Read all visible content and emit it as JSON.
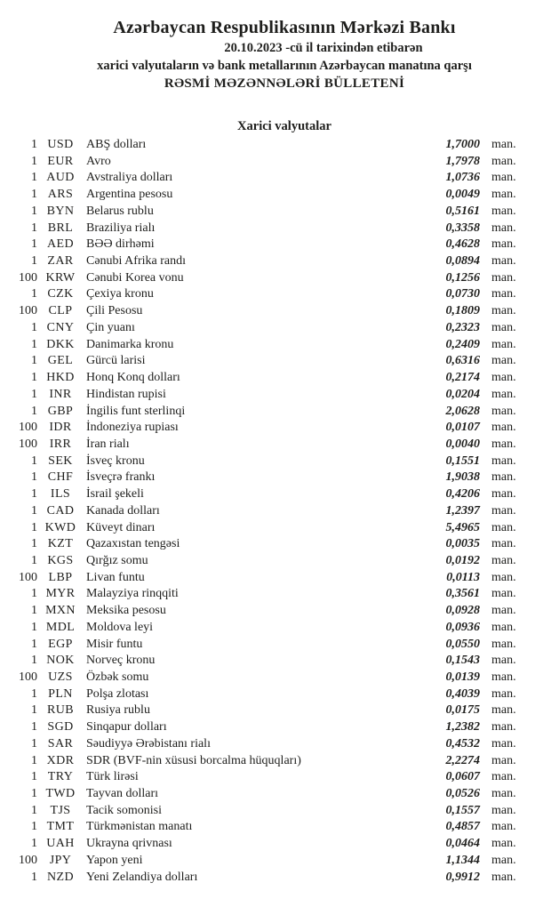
{
  "header": {
    "bank_name": "Azərbaycan Respublikasının Mərkəzi Bankı",
    "date_line": "20.10.2023 -cü il tarixindən etibarən",
    "subject_line": "xarici valyutaların və bank metallarının Azərbaycan manatına qarşı",
    "bulletin_line": "RƏSMİ MƏZƏNNƏLƏRİ BÜLLETENİ"
  },
  "section": {
    "title": "Xarici valyutalar"
  },
  "unit_suffix": "man.",
  "rates": [
    {
      "qty": "1",
      "code": "USD",
      "name": "ABŞ dolları",
      "rate": "1,7000"
    },
    {
      "qty": "1",
      "code": "EUR",
      "name": "Avro",
      "rate": "1,7978"
    },
    {
      "qty": "1",
      "code": "AUD",
      "name": "Avstraliya dolları",
      "rate": "1,0736"
    },
    {
      "qty": "1",
      "code": "ARS",
      "name": "Argentina pesosu",
      "rate": "0,0049"
    },
    {
      "qty": "1",
      "code": "BYN",
      "name": "Belarus rublu",
      "rate": "0,5161"
    },
    {
      "qty": "1",
      "code": "BRL",
      "name": "Braziliya rialı",
      "rate": "0,3358"
    },
    {
      "qty": "1",
      "code": "AED",
      "name": "BƏƏ dirhəmi",
      "rate": "0,4628"
    },
    {
      "qty": "1",
      "code": "ZAR",
      "name": "Cənubi Afrika randı",
      "rate": "0,0894"
    },
    {
      "qty": "100",
      "code": "KRW",
      "name": "Cənubi Korea vonu",
      "rate": "0,1256"
    },
    {
      "qty": "1",
      "code": "CZK",
      "name": "Çexiya kronu",
      "rate": "0,0730"
    },
    {
      "qty": "100",
      "code": "CLP",
      "name": "Çili Pesosu",
      "rate": "0,1809"
    },
    {
      "qty": "1",
      "code": "CNY",
      "name": "Çin yuanı",
      "rate": "0,2323"
    },
    {
      "qty": "1",
      "code": "DKK",
      "name": "Danimarka kronu",
      "rate": "0,2409"
    },
    {
      "qty": "1",
      "code": "GEL",
      "name": "Gürcü larisi",
      "rate": "0,6316"
    },
    {
      "qty": "1",
      "code": "HKD",
      "name": "Honq Konq dolları",
      "rate": "0,2174"
    },
    {
      "qty": "1",
      "code": "INR",
      "name": "Hindistan rupisi",
      "rate": "0,0204"
    },
    {
      "qty": "1",
      "code": "GBP",
      "name": "İngilis funt sterlinqi",
      "rate": "2,0628"
    },
    {
      "qty": "100",
      "code": "IDR",
      "name": "İndoneziya rupiası",
      "rate": "0,0107"
    },
    {
      "qty": "100",
      "code": "IRR",
      "name": "İran rialı",
      "rate": "0,0040"
    },
    {
      "qty": "1",
      "code": "SEK",
      "name": "İsveç kronu",
      "rate": "0,1551"
    },
    {
      "qty": "1",
      "code": "CHF",
      "name": "İsveçrə frankı",
      "rate": "1,9038"
    },
    {
      "qty": "1",
      "code": "ILS",
      "name": "İsrail şekeli",
      "rate": "0,4206"
    },
    {
      "qty": "1",
      "code": "CAD",
      "name": "Kanada dolları",
      "rate": "1,2397"
    },
    {
      "qty": "1",
      "code": "KWD",
      "name": "Küveyt dinarı",
      "rate": "5,4965"
    },
    {
      "qty": "1",
      "code": "KZT",
      "name": "Qazaxıstan tengəsi",
      "rate": "0,0035"
    },
    {
      "qty": "1",
      "code": "KGS",
      "name": "Qırğız somu",
      "rate": "0,0192"
    },
    {
      "qty": "100",
      "code": "LBP",
      "name": "Livan funtu",
      "rate": "0,0113"
    },
    {
      "qty": "1",
      "code": "MYR",
      "name": "Malayziya rinqqiti",
      "rate": "0,3561"
    },
    {
      "qty": "1",
      "code": "MXN",
      "name": "Meksika pesosu",
      "rate": "0,0928"
    },
    {
      "qty": "1",
      "code": "MDL",
      "name": "Moldova leyi",
      "rate": "0,0936"
    },
    {
      "qty": "1",
      "code": "EGP",
      "name": "Misir funtu",
      "rate": "0,0550"
    },
    {
      "qty": "1",
      "code": "NOK",
      "name": "Norveç kronu",
      "rate": "0,1543"
    },
    {
      "qty": "100",
      "code": "UZS",
      "name": "Özbək somu",
      "rate": "0,0139"
    },
    {
      "qty": "1",
      "code": "PLN",
      "name": "Polşa zlotası",
      "rate": "0,4039"
    },
    {
      "qty": "1",
      "code": "RUB",
      "name": "Rusiya rublu",
      "rate": "0,0175"
    },
    {
      "qty": "1",
      "code": "SGD",
      "name": "Sinqapur dolları",
      "rate": "1,2382"
    },
    {
      "qty": "1",
      "code": "SAR",
      "name": "Səudiyyə Ərəbistanı rialı",
      "rate": "0,4532"
    },
    {
      "qty": "1",
      "code": "XDR",
      "name": "SDR (BVF-nin xüsusi borcalma hüquqları)",
      "rate": "2,2274"
    },
    {
      "qty": "1",
      "code": "TRY",
      "name": "Türk lirəsi",
      "rate": "0,0607"
    },
    {
      "qty": "1",
      "code": "TWD",
      "name": "Tayvan dolları",
      "rate": "0,0526"
    },
    {
      "qty": "1",
      "code": "TJS",
      "name": "Tacik somonisi",
      "rate": "0,1557"
    },
    {
      "qty": "1",
      "code": "TMT",
      "name": "Türkmənistan manatı",
      "rate": "0,4857"
    },
    {
      "qty": "1",
      "code": "UAH",
      "name": "Ukrayna qrivnası",
      "rate": "0,0464"
    },
    {
      "qty": "100",
      "code": "JPY",
      "name": "Yapon yeni",
      "rate": "1,1344"
    },
    {
      "qty": "1",
      "code": "NZD",
      "name": "Yeni Zelandiya dolları",
      "rate": "0,9912"
    }
  ]
}
